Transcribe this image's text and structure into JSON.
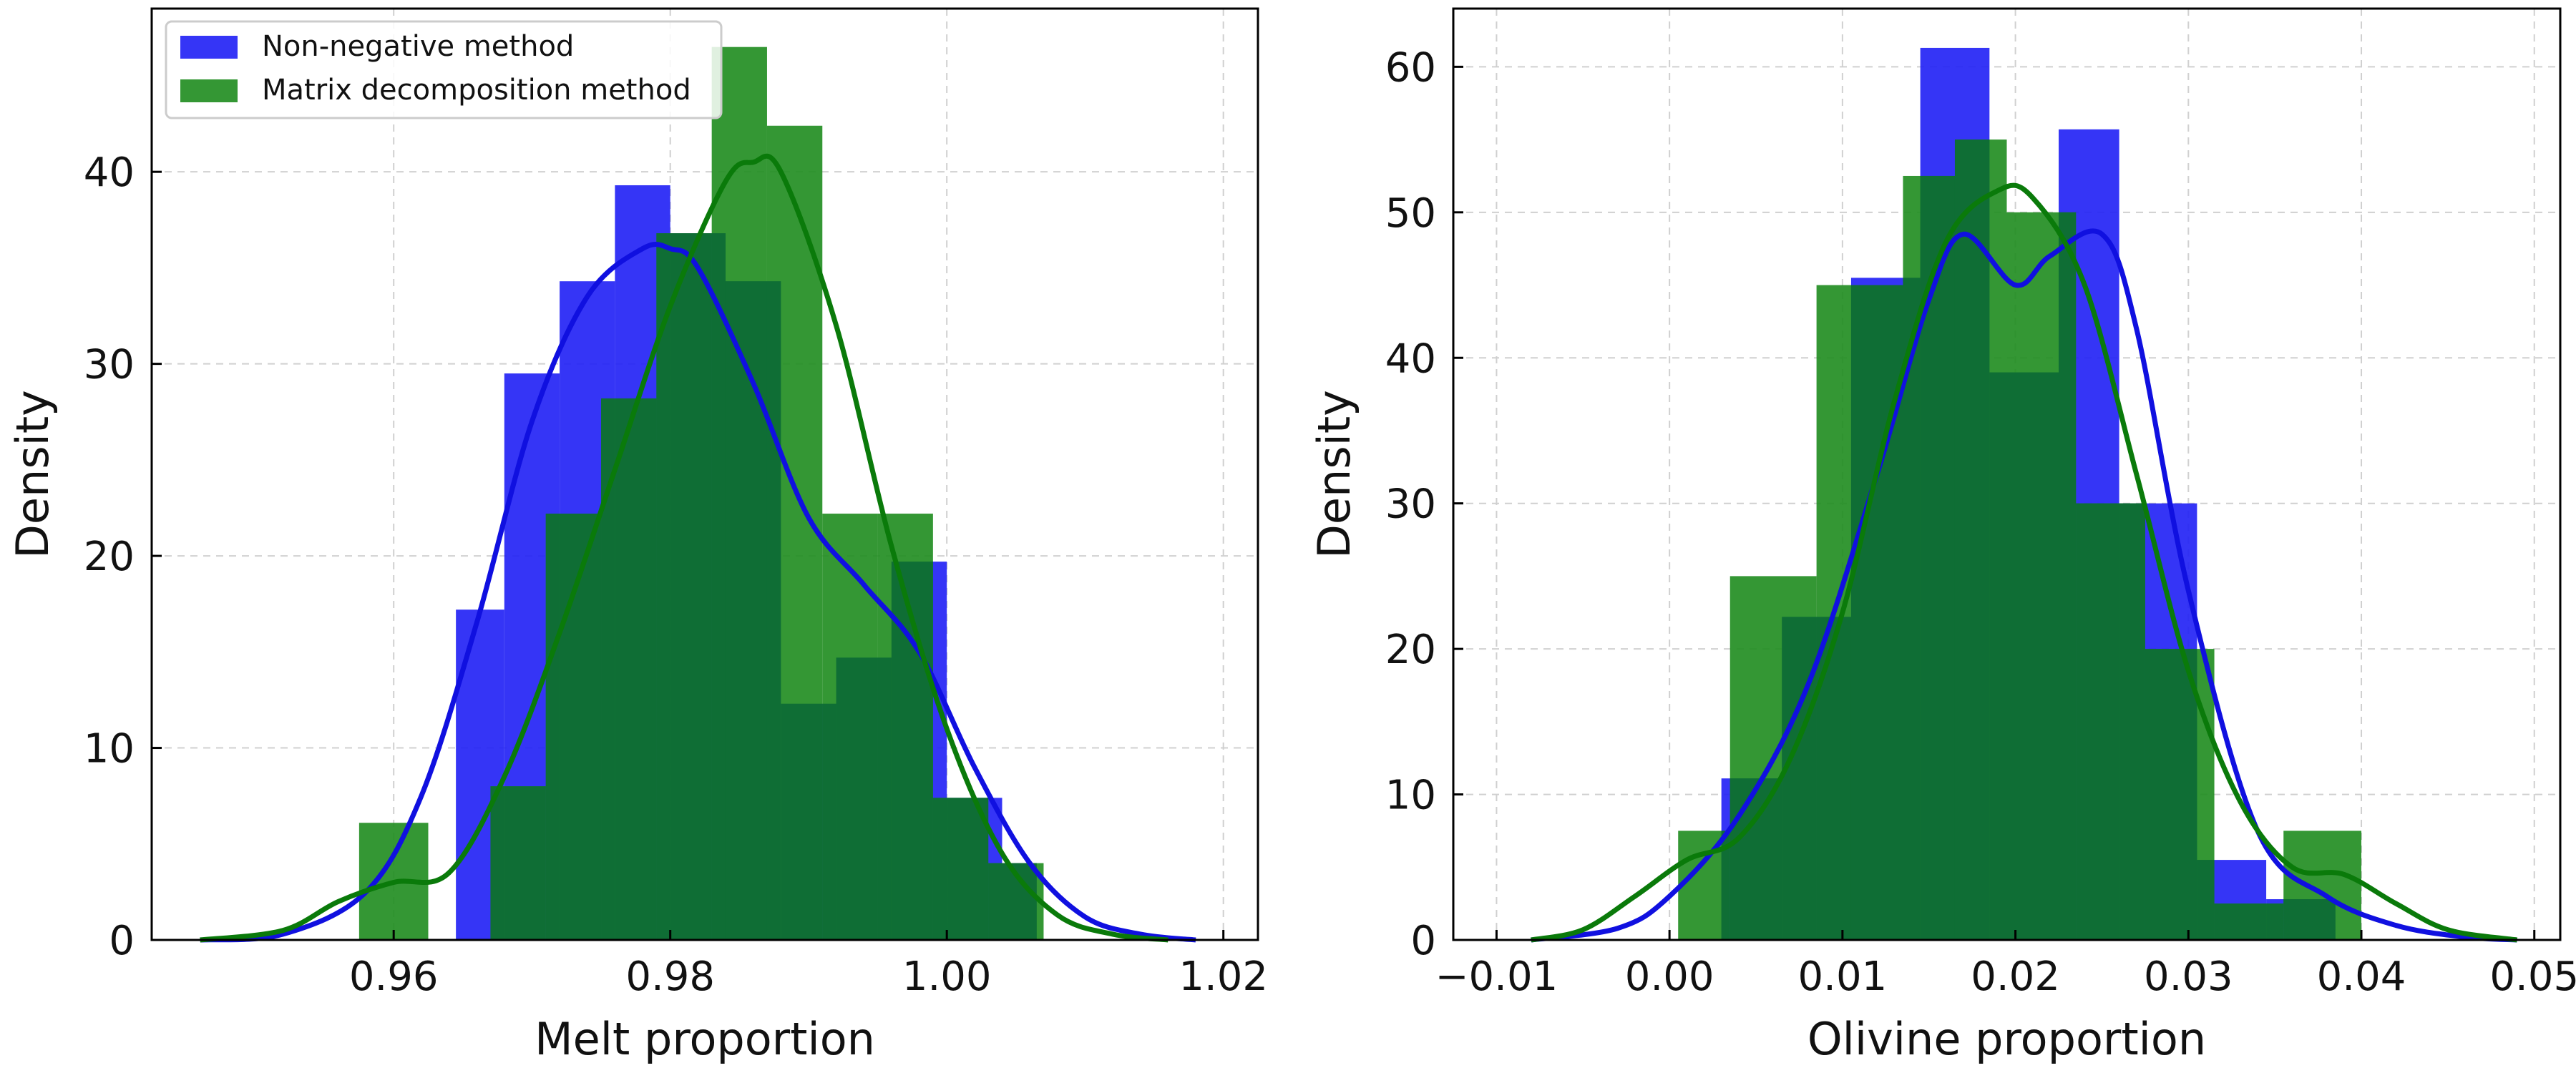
{
  "chart_data": [
    {
      "type": "histogram",
      "xlabel": "Melt proportion",
      "ylabel": "Density",
      "xlim": [
        0.9425,
        1.0225
      ],
      "ylim": [
        0,
        48.5
      ],
      "xticks": [
        0.96,
        0.98,
        1.0,
        1.02
      ],
      "xtick_labels": [
        "0.96",
        "0.98",
        "1.00",
        "1.02"
      ],
      "yticks": [
        0,
        10,
        20,
        30,
        40
      ],
      "ytick_labels": [
        "0",
        "10",
        "20",
        "30",
        "40"
      ],
      "grid": true,
      "legend": {
        "placement": "top-left",
        "entries": [
          {
            "label": "Non-negative method",
            "color": "#1f1ff5"
          },
          {
            "label": "Matrix decomposition method",
            "color": "#1e8c1e"
          }
        ]
      },
      "series": [
        {
          "name": "Non-negative method",
          "color": "#1f1ff5",
          "bin_edges": [
            0.9645,
            0.968,
            0.972,
            0.976,
            0.98,
            0.984,
            0.988,
            0.992,
            0.996,
            1.0,
            1.004,
            1.0065
          ],
          "values": [
            17.2,
            29.5,
            34.3,
            39.3,
            36.8,
            34.3,
            12.3,
            14.7,
            19.7,
            7.4,
            4.0
          ],
          "kde": {
            "x": [
              0.946,
              0.952,
              0.958,
              0.962,
              0.966,
              0.97,
              0.974,
              0.978,
              0.98,
              0.982,
              0.986,
              0.99,
              0.994,
              0.998,
              1.002,
              1.006,
              1.01,
              1.014,
              1.018
            ],
            "y": [
              0,
              0.3,
              2.5,
              7.5,
              16.5,
              27,
              33.5,
              36,
              36,
              35,
              29,
              22,
              18.5,
              15,
              9,
              4,
              1.2,
              0.3,
              0
            ]
          }
        },
        {
          "name": "Matrix decomposition method",
          "color": "#1e8c1e",
          "bin_edges": [
            0.9575,
            0.9625,
            0.967,
            0.971,
            0.975,
            0.979,
            0.983,
            0.987,
            0.991,
            0.995,
            0.999,
            1.003,
            1.007
          ],
          "values": [
            6.1,
            0,
            8.0,
            22.2,
            28.2,
            36.8,
            46.5,
            42.4,
            22.2,
            22.2,
            7.4,
            4.0
          ],
          "kde": {
            "x": [
              0.946,
              0.952,
              0.956,
              0.96,
              0.964,
              0.968,
              0.972,
              0.976,
              0.98,
              0.984,
              0.986,
              0.988,
              0.992,
              0.996,
              1.0,
              1.004,
              1.008,
              1.012,
              1.016
            ],
            "y": [
              0,
              0.5,
              2.0,
              3.0,
              3.5,
              8.5,
              16,
              24.5,
              33,
              39.5,
              40.5,
              40,
              32,
              20.5,
              11,
              4.5,
              1.3,
              0.3,
              0
            ]
          }
        }
      ],
      "overlap_color": "#0f6e35"
    },
    {
      "type": "histogram",
      "xlabel": "Olivine proportion",
      "ylabel": "Density",
      "xlim": [
        -0.0125,
        0.0515
      ],
      "ylim": [
        0,
        64
      ],
      "xticks": [
        -0.01,
        0.0,
        0.01,
        0.02,
        0.03,
        0.04,
        0.05
      ],
      "xtick_labels": [
        "−0.01",
        "0.00",
        "0.01",
        "0.02",
        "0.03",
        "0.04",
        "0.05"
      ],
      "yticks": [
        0,
        10,
        20,
        30,
        40,
        50,
        60
      ],
      "ytick_labels": [
        "0",
        "10",
        "20",
        "30",
        "40",
        "50",
        "60"
      ],
      "grid": true,
      "series": [
        {
          "name": "Non-negative method",
          "color": "#1f1ff5",
          "bin_edges": [
            0.003,
            0.0065,
            0.0105,
            0.0145,
            0.0185,
            0.0225,
            0.026,
            0.0305,
            0.0345,
            0.0385
          ],
          "values": [
            11.1,
            22.2,
            45.5,
            61.3,
            39.0,
            55.7,
            30.0,
            5.5,
            2.8
          ],
          "kde": {
            "x": [
              -0.008,
              -0.003,
              0.0,
              0.004,
              0.008,
              0.012,
              0.015,
              0.017,
              0.02,
              0.022,
              0.025,
              0.027,
              0.03,
              0.034,
              0.038,
              0.042,
              0.046,
              0.049
            ],
            "y": [
              0,
              0.8,
              3,
              8.5,
              17.5,
              32,
              44,
              48.5,
              45,
              47,
              48.5,
              42,
              24,
              7.5,
              3.0,
              1.0,
              0.2,
              0
            ]
          }
        },
        {
          "name": "Matrix decomposition method",
          "color": "#1e8c1e",
          "bin_edges": [
            0.0005,
            0.0035,
            0.0085,
            0.0135,
            0.0165,
            0.0195,
            0.0235,
            0.0275,
            0.0315,
            0.0355,
            0.04
          ],
          "values": [
            7.5,
            25.0,
            45.0,
            52.5,
            55.0,
            50.0,
            30.0,
            20.0,
            2.5,
            7.5
          ],
          "kde": {
            "x": [
              -0.008,
              -0.005,
              -0.002,
              0.001,
              0.004,
              0.007,
              0.01,
              0.013,
              0.016,
              0.019,
              0.021,
              0.024,
              0.027,
              0.03,
              0.033,
              0.036,
              0.039,
              0.042,
              0.045,
              0.049
            ],
            "y": [
              0,
              0.7,
              3.0,
              5.5,
              7.0,
              12.5,
              22.5,
              37,
              48,
              51.5,
              51,
              45,
              32,
              18.5,
              9.5,
              5.0,
              4.5,
              2.5,
              0.7,
              0
            ]
          }
        }
      ],
      "overlap_color": "#0f6e35"
    }
  ]
}
